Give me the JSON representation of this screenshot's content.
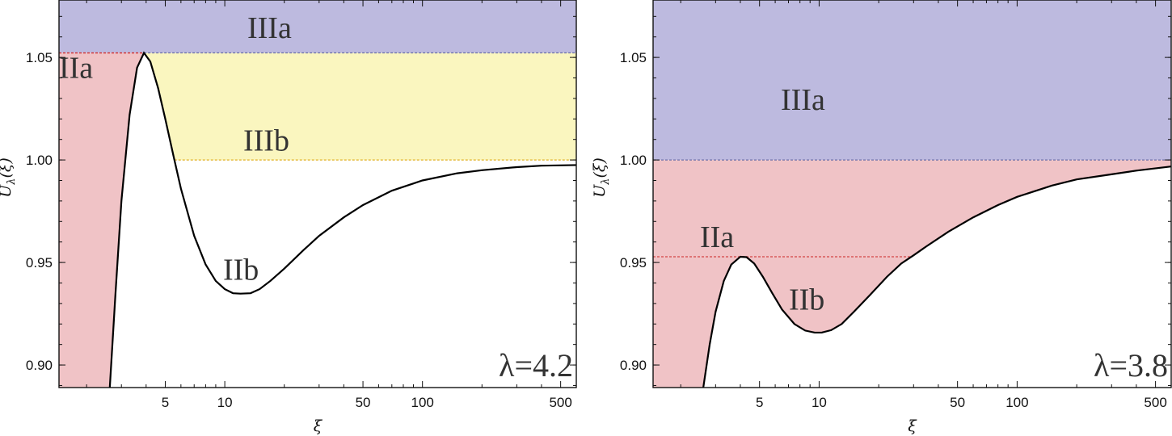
{
  "colors": {
    "IIIa": "#bdbadf",
    "IIIb": "#faf6bf",
    "IIa": "#f0c3c6",
    "IIb": "#f3d6b5",
    "curve": "#000000",
    "frame": "#111111"
  },
  "chart_data": [
    {
      "type": "area",
      "xscale": "log",
      "xlim": [
        1.45,
        600
      ],
      "ylim": [
        0.889,
        1.078
      ],
      "xlabel": "ξ",
      "ylabel": "U_λ(ξ)",
      "xticks": [
        5,
        10,
        50,
        100,
        500
      ],
      "xtick_labels": [
        "5",
        "10",
        "50",
        "100",
        "500"
      ],
      "yticks": [
        0.9,
        0.95,
        1.0,
        1.05
      ],
      "ytick_labels": [
        "0.90",
        "0.95",
        "1.00",
        "1.05"
      ],
      "param_label": "λ=4.2",
      "curve": {
        "x": [
          2.62,
          2.8,
          3.0,
          3.3,
          3.6,
          3.9,
          4.2,
          4.6,
          5.0,
          5.5,
          6.0,
          7.0,
          8.0,
          9.0,
          10.0,
          11.0,
          12.0,
          13.5,
          15.0,
          17.0,
          20.0,
          25.0,
          30.0,
          40.0,
          50.0,
          70.0,
          100.0,
          150.0,
          200.0,
          300.0,
          400.0,
          600.0
        ],
        "y": [
          0.889,
          0.935,
          0.98,
          1.022,
          1.045,
          1.0522,
          1.048,
          1.035,
          1.02,
          1.002,
          0.986,
          0.963,
          0.949,
          0.941,
          0.937,
          0.935,
          0.9348,
          0.935,
          0.937,
          0.941,
          0.947,
          0.956,
          0.963,
          0.972,
          0.978,
          0.985,
          0.99,
          0.9935,
          0.995,
          0.9965,
          0.9972,
          0.9975
        ]
      },
      "peak": {
        "x": 3.9,
        "y": 1.0522
      },
      "regions": [
        {
          "name": "IIIa",
          "label": "IIIa",
          "y_from": 1.0522,
          "y_to": 1.078
        },
        {
          "name": "IIIb",
          "label": "IIIb",
          "y_from": 1.0,
          "y_to": 1.0522
        },
        {
          "name": "IIa",
          "label": "IIa",
          "y_from": 0.889,
          "y_to": 1.0522
        },
        {
          "name": "IIb",
          "label": "IIb",
          "y_from": 0.9348,
          "y_to": 1.0
        }
      ]
    },
    {
      "type": "area",
      "xscale": "log",
      "xlim": [
        1.45,
        600
      ],
      "ylim": [
        0.889,
        1.078
      ],
      "xlabel": "ξ",
      "ylabel": "U_λ(ξ)",
      "xticks": [
        5,
        10,
        50,
        100,
        500
      ],
      "xtick_labels": [
        "5",
        "10",
        "50",
        "100",
        "500"
      ],
      "yticks": [
        0.9,
        0.95,
        1.0,
        1.05
      ],
      "ytick_labels": [
        "0.90",
        "0.95",
        "1.00",
        "1.05"
      ],
      "param_label": "λ=3.8",
      "curve": {
        "x": [
          2.6,
          2.8,
          3.0,
          3.3,
          3.6,
          4.0,
          4.3,
          4.7,
          5.2,
          5.8,
          6.5,
          7.5,
          8.5,
          9.5,
          10.3,
          11.5,
          13.0,
          15.0,
          18.0,
          22.0,
          26.0,
          30.0,
          35.0,
          45.0,
          60.0,
          80.0,
          100.0,
          150.0,
          200.0,
          300.0,
          400.0,
          600.0
        ],
        "y": [
          0.889,
          0.91,
          0.926,
          0.941,
          0.949,
          0.9528,
          0.9526,
          0.9495,
          0.943,
          0.935,
          0.927,
          0.92,
          0.9168,
          0.9158,
          0.9158,
          0.917,
          0.92,
          0.926,
          0.934,
          0.943,
          0.9495,
          0.9535,
          0.958,
          0.965,
          0.972,
          0.978,
          0.982,
          0.9875,
          0.9905,
          0.993,
          0.9948,
          0.9968
        ]
      },
      "peak": {
        "x": 4.2,
        "y": 0.9528
      },
      "regions": [
        {
          "name": "IIIa",
          "label": "IIIa",
          "y_from": 1.0,
          "y_to": 1.078
        },
        {
          "name": "IIa",
          "label": "IIa",
          "y_from": 0.889,
          "y_to": 1.0
        },
        {
          "name": "IIb",
          "label": "IIb",
          "y_from": 0.9158,
          "y_to": 0.9528
        }
      ]
    }
  ]
}
